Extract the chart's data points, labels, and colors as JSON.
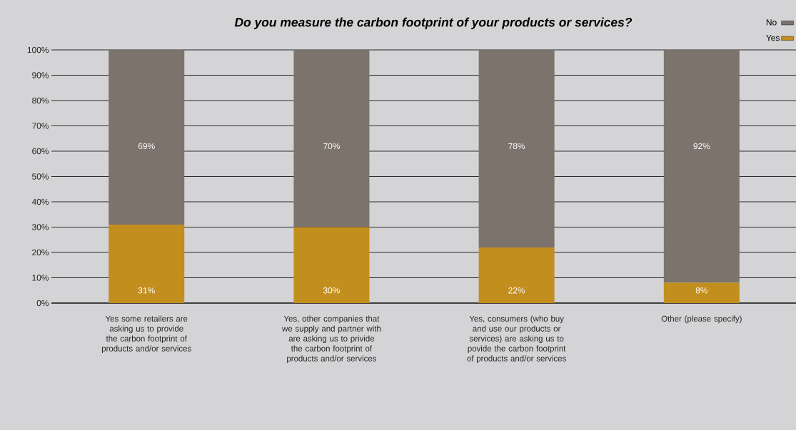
{
  "chart_data": {
    "type": "bar",
    "stacked": true,
    "title": "Do you measure the carbon footprint of your products or services?",
    "categories": [
      "Yes some retailers are asking us to provide the carbon footprint of products and/or services",
      "Yes, other companies that we supply and partner with are asking us to privide the carbon footprint of products and/or services",
      "Yes, consumers (who buy and use our products or services) are asking us to povide the carbon footprint of products and/or services",
      "Other (please specify)"
    ],
    "series": [
      {
        "name": "Yes",
        "color": "#c28e1e",
        "values": [
          31,
          30,
          22,
          8
        ],
        "value_labels": [
          "31%",
          "30%",
          "22%",
          "8%"
        ]
      },
      {
        "name": "No",
        "color": "#7b736c",
        "values": [
          69,
          70,
          78,
          92
        ],
        "value_labels": [
          "69%",
          "70%",
          "78%",
          "92%"
        ]
      }
    ],
    "ylim": [
      0,
      100
    ],
    "yticks": [
      {
        "value": 0,
        "label": "0%"
      },
      {
        "value": 10,
        "label": "10%"
      },
      {
        "value": 20,
        "label": "20%"
      },
      {
        "value": 30,
        "label": "30%"
      },
      {
        "value": 40,
        "label": "40%"
      },
      {
        "value": 50,
        "label": "50%"
      },
      {
        "value": 60,
        "label": "60%"
      },
      {
        "value": 70,
        "label": "70%"
      },
      {
        "value": 80,
        "label": "80%"
      },
      {
        "value": 90,
        "label": "90%"
      },
      {
        "value": 100,
        "label": "100%"
      }
    ],
    "grid": "y",
    "legend": "top right"
  }
}
